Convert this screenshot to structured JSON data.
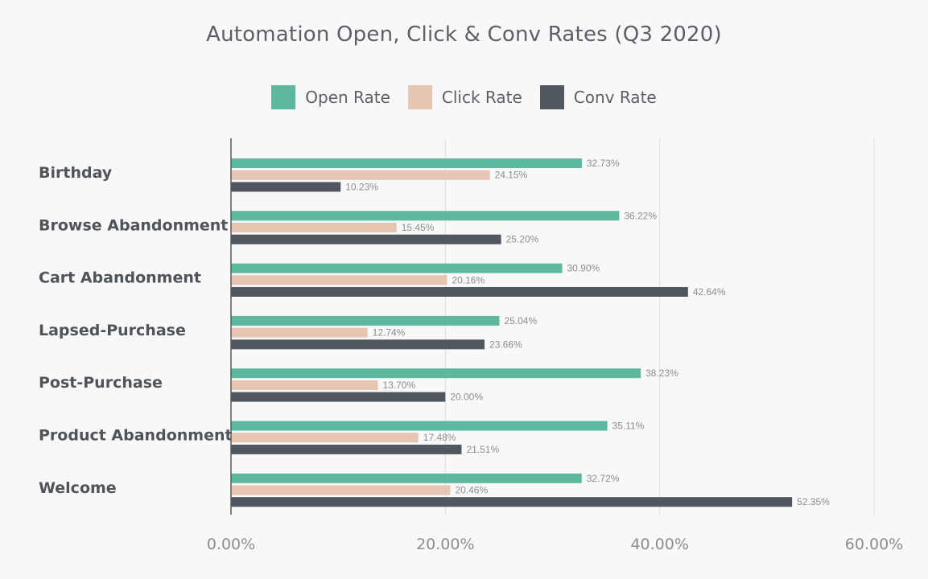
{
  "chart_data": {
    "type": "bar",
    "orientation": "horizontal",
    "title": "Automation Open, Click & Conv Rates (Q3 2020)",
    "categories": [
      "Birthday",
      "Browse Abandonment",
      "Cart Abandonment",
      "Lapsed-Purchase",
      "Post-Purchase",
      "Product Abandonment",
      "Welcome"
    ],
    "series": [
      {
        "name": "Open Rate",
        "color": "#5db89f",
        "values": [
          32.73,
          36.22,
          30.9,
          25.04,
          38.23,
          35.11,
          32.72
        ],
        "labels": [
          "32.73%",
          "36.22%",
          "30.90%",
          "25.04%",
          "38.23%",
          "35.11%",
          "32.72%"
        ]
      },
      {
        "name": "Click Rate",
        "color": "#e6c6b2",
        "values": [
          24.15,
          15.45,
          20.16,
          12.74,
          13.7,
          17.48,
          20.46
        ],
        "labels": [
          "24.15%",
          "15.45%",
          "20.16%",
          "12.74%",
          "13.70%",
          "17.48%",
          "20.46%"
        ]
      },
      {
        "name": "Conv Rate",
        "color": "#50575f",
        "values": [
          10.23,
          25.2,
          42.64,
          23.66,
          20.0,
          21.51,
          52.35
        ],
        "labels": [
          "10.23%",
          "25.20%",
          "42.64%",
          "23.66%",
          "20.00%",
          "21.51%",
          "52.35%"
        ]
      }
    ],
    "xlim": [
      0,
      60
    ],
    "xticks": [
      0,
      20,
      40,
      60
    ],
    "xtick_labels": [
      "0.00%",
      "20.00%",
      "40.00%",
      "60.00%"
    ],
    "legend_position": "top-center",
    "grid": true
  }
}
